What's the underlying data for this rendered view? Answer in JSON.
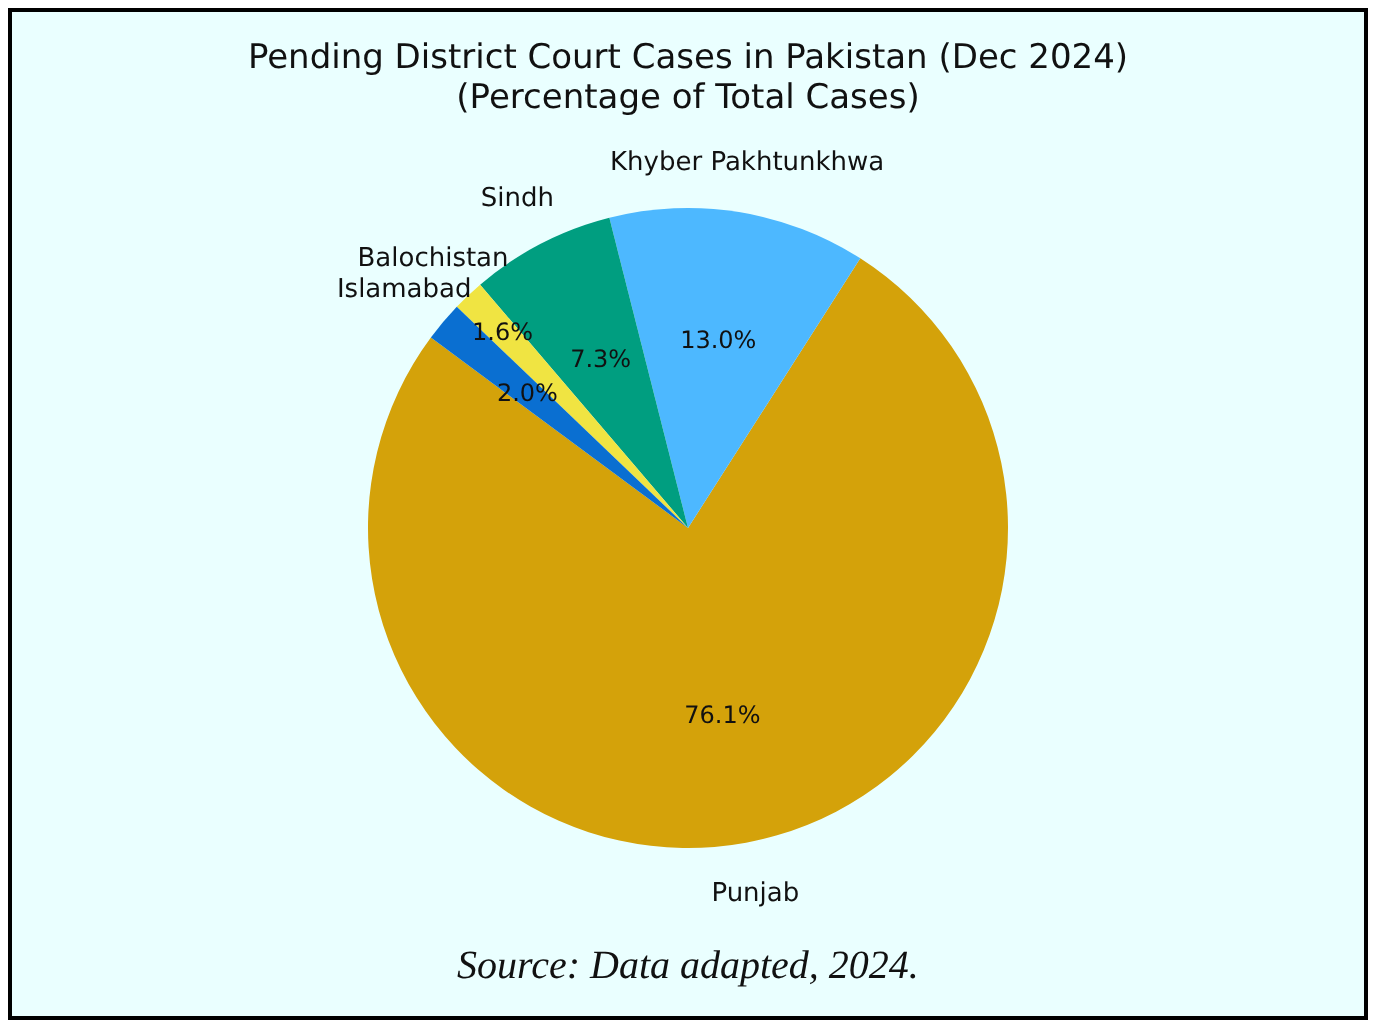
{
  "chart_data": {
    "type": "pie",
    "title": "Pending District Court Cases in Pakistan (Dec 2024)",
    "subtitle": "(Percentage of Total Cases)",
    "categories": [
      "Punjab",
      "Khyber Pakhtunkhwa",
      "Sindh",
      "Balochistan",
      "Islamabad"
    ],
    "values": [
      76.1,
      13.0,
      7.3,
      1.6,
      2.0
    ],
    "colors": [
      "#d4a20a",
      "#4db8ff",
      "#009e80",
      "#f0e442",
      "#0a6fd1"
    ],
    "value_labels": [
      "76.1%",
      "13.0%",
      "7.3%",
      "1.6%",
      "2.0%"
    ],
    "legend": false,
    "annotations": [
      "Source: Data adapted, 2024."
    ]
  }
}
